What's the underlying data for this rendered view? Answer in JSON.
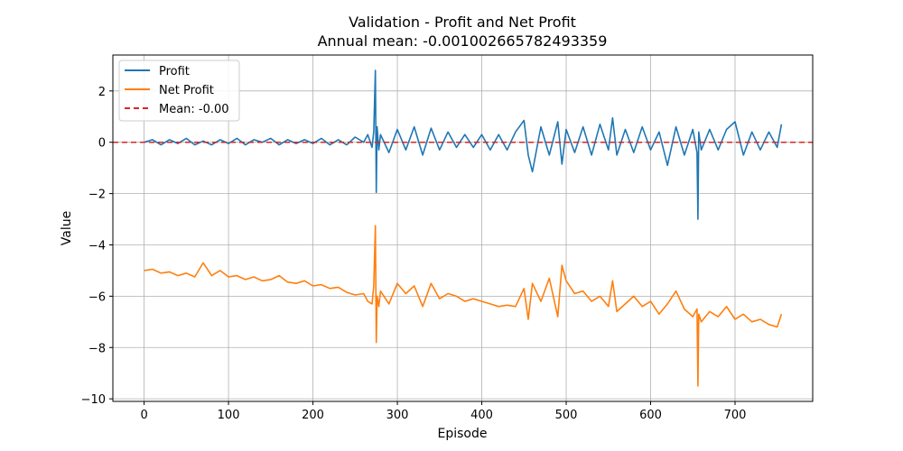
{
  "chart_data": {
    "type": "line",
    "title": "Validation - Profit and Net Profit",
    "subtitle": "Annual mean: -0.001002665782493359",
    "xlabel": "Episode",
    "ylabel": "Value",
    "xlim": [
      -37,
      792
    ],
    "ylim": [
      -10.1,
      3.4
    ],
    "xticks": [
      0,
      100,
      200,
      300,
      400,
      500,
      600,
      700
    ],
    "yticks": [
      -10,
      -8,
      -6,
      -4,
      -2,
      0,
      2
    ],
    "grid": true,
    "legend_position": "top-left",
    "series": [
      {
        "name": "Profit",
        "color": "#1f77b4",
        "style": "solid",
        "x": [
          0,
          10,
          20,
          30,
          40,
          50,
          60,
          70,
          80,
          90,
          100,
          110,
          120,
          130,
          140,
          150,
          160,
          170,
          180,
          190,
          200,
          210,
          220,
          230,
          240,
          250,
          260,
          265,
          270,
          272,
          274,
          275,
          276,
          278,
          280,
          290,
          300,
          310,
          320,
          330,
          340,
          350,
          360,
          370,
          380,
          390,
          400,
          410,
          420,
          430,
          440,
          450,
          455,
          460,
          470,
          480,
          490,
          495,
          500,
          510,
          520,
          530,
          540,
          550,
          555,
          560,
          570,
          580,
          590,
          600,
          610,
          620,
          630,
          640,
          650,
          655,
          656,
          657,
          660,
          670,
          680,
          690,
          700,
          710,
          720,
          730,
          740,
          750,
          755
        ],
        "values": [
          0.0,
          0.1,
          -0.1,
          0.1,
          -0.05,
          0.15,
          -0.1,
          0.05,
          -0.1,
          0.1,
          -0.05,
          0.15,
          -0.1,
          0.1,
          0.0,
          0.15,
          -0.1,
          0.1,
          -0.05,
          0.1,
          -0.05,
          0.15,
          -0.1,
          0.1,
          -0.1,
          0.2,
          0.0,
          0.3,
          -0.2,
          0.4,
          2.8,
          -1.95,
          0.6,
          -0.3,
          0.3,
          -0.4,
          0.5,
          -0.3,
          0.6,
          -0.5,
          0.55,
          -0.3,
          0.4,
          -0.2,
          0.3,
          -0.2,
          0.3,
          -0.3,
          0.3,
          -0.3,
          0.4,
          0.85,
          -0.5,
          -1.15,
          0.6,
          -0.5,
          0.8,
          -0.85,
          0.5,
          -0.4,
          0.6,
          -0.5,
          0.7,
          -0.3,
          0.95,
          -0.5,
          0.5,
          -0.4,
          0.6,
          -0.3,
          0.4,
          -0.9,
          0.6,
          -0.5,
          0.5,
          -0.4,
          -3.0,
          0.4,
          -0.3,
          0.5,
          -0.3,
          0.5,
          0.8,
          -0.5,
          0.4,
          -0.3,
          0.4,
          -0.2,
          0.7
        ]
      },
      {
        "name": "Net Profit",
        "color": "#ff7f0e",
        "style": "solid",
        "x": [
          0,
          10,
          20,
          30,
          40,
          50,
          60,
          70,
          80,
          90,
          100,
          110,
          120,
          130,
          140,
          150,
          160,
          170,
          180,
          190,
          200,
          210,
          220,
          230,
          240,
          250,
          260,
          265,
          270,
          272,
          274,
          275,
          276,
          278,
          280,
          290,
          300,
          310,
          320,
          330,
          340,
          350,
          360,
          370,
          380,
          390,
          400,
          410,
          420,
          430,
          440,
          450,
          455,
          460,
          470,
          480,
          490,
          495,
          500,
          510,
          520,
          530,
          540,
          550,
          555,
          560,
          570,
          580,
          590,
          600,
          610,
          620,
          630,
          640,
          650,
          655,
          656,
          657,
          660,
          670,
          680,
          690,
          700,
          710,
          720,
          730,
          740,
          750,
          755
        ],
        "values": [
          -5.0,
          -4.95,
          -5.1,
          -5.05,
          -5.2,
          -5.1,
          -5.25,
          -4.7,
          -5.2,
          -5.0,
          -5.25,
          -5.2,
          -5.35,
          -5.25,
          -5.4,
          -5.35,
          -5.2,
          -5.45,
          -5.5,
          -5.4,
          -5.6,
          -5.55,
          -5.7,
          -5.65,
          -5.85,
          -5.95,
          -5.9,
          -6.2,
          -6.3,
          -5.6,
          -3.25,
          -7.8,
          -6.0,
          -6.4,
          -5.8,
          -6.3,
          -5.5,
          -5.9,
          -5.6,
          -6.4,
          -5.5,
          -6.1,
          -5.9,
          -6.0,
          -6.2,
          -6.1,
          -6.2,
          -6.3,
          -6.4,
          -6.35,
          -6.4,
          -5.7,
          -6.9,
          -5.5,
          -6.2,
          -5.3,
          -6.8,
          -4.8,
          -5.4,
          -5.9,
          -5.8,
          -6.2,
          -6.0,
          -6.4,
          -5.4,
          -6.6,
          -6.3,
          -6.0,
          -6.4,
          -6.2,
          -6.7,
          -6.3,
          -5.8,
          -6.5,
          -6.8,
          -6.5,
          -9.5,
          -6.7,
          -7.0,
          -6.6,
          -6.8,
          -6.4,
          -6.9,
          -6.7,
          -7.0,
          -6.9,
          -7.1,
          -7.2,
          -6.7
        ]
      }
    ],
    "reference_lines": [
      {
        "name": "Mean: -0.00",
        "y": -0.001,
        "color": "#d62728",
        "style": "dashed"
      }
    ]
  }
}
